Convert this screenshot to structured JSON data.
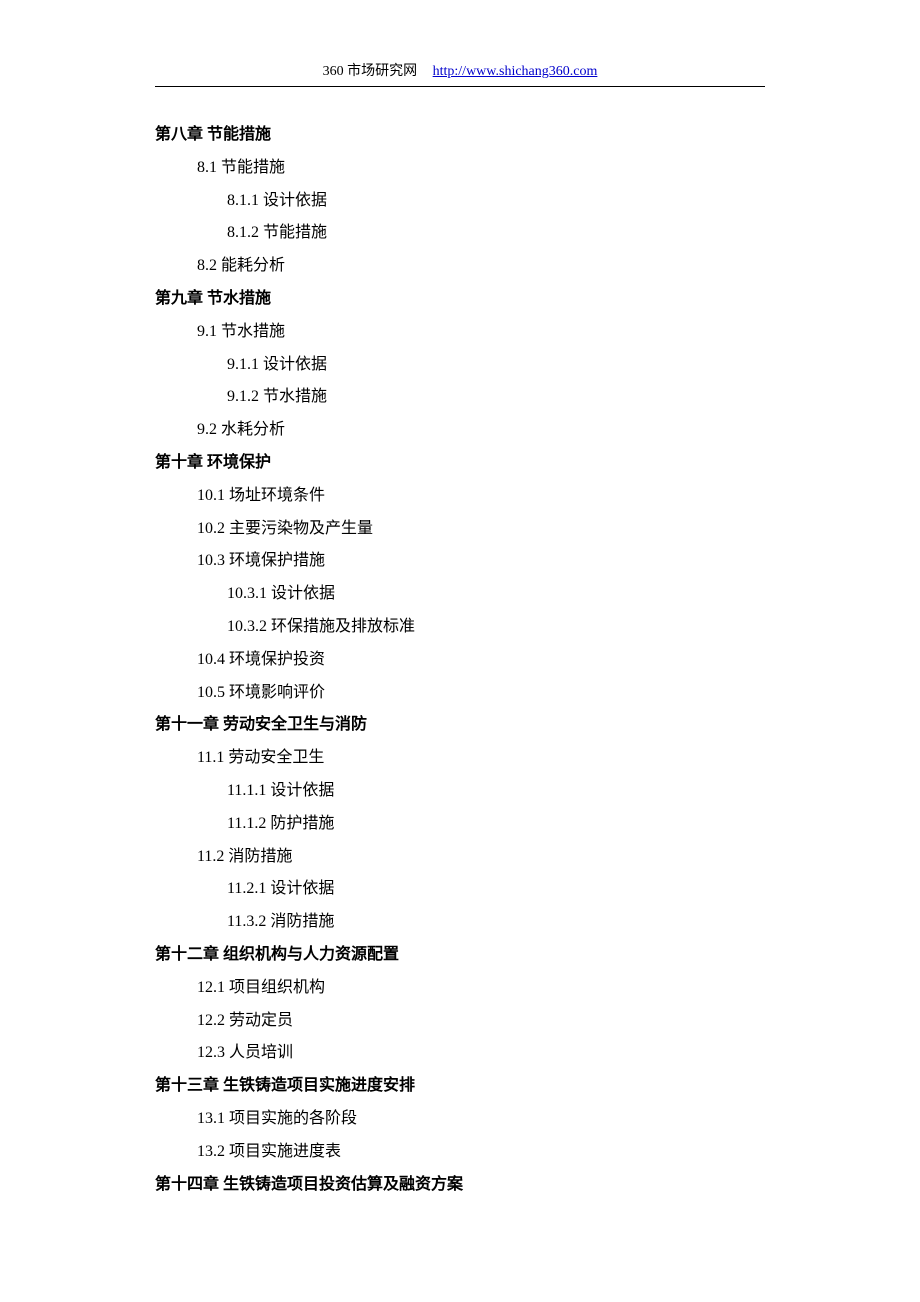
{
  "header": {
    "site_name": "360 市场研究网",
    "url": "http://www.shichang360.com"
  },
  "toc": [
    {
      "type": "chapter",
      "text": "第八章 节能措施"
    },
    {
      "type": "level1",
      "text": "8.1 节能措施"
    },
    {
      "type": "level2",
      "text": "8.1.1 设计依据"
    },
    {
      "type": "level2",
      "text": "8.1.2 节能措施"
    },
    {
      "type": "level1",
      "text": "8.2 能耗分析"
    },
    {
      "type": "chapter",
      "text": "第九章 节水措施"
    },
    {
      "type": "level1",
      "text": "9.1 节水措施"
    },
    {
      "type": "level2",
      "text": "9.1.1 设计依据"
    },
    {
      "type": "level2",
      "text": "9.1.2 节水措施"
    },
    {
      "type": "level1",
      "text": "9.2 水耗分析"
    },
    {
      "type": "chapter",
      "text": "第十章 环境保护"
    },
    {
      "type": "level1",
      "text": "10.1 场址环境条件"
    },
    {
      "type": "level1",
      "text": "10.2 主要污染物及产生量"
    },
    {
      "type": "level1",
      "text": "10.3 环境保护措施"
    },
    {
      "type": "level2",
      "text": "10.3.1 设计依据"
    },
    {
      "type": "level2",
      "text": "10.3.2 环保措施及排放标准"
    },
    {
      "type": "level1",
      "text": "10.4 环境保护投资"
    },
    {
      "type": "level1",
      "text": "10.5 环境影响评价"
    },
    {
      "type": "chapter",
      "text": "第十一章 劳动安全卫生与消防"
    },
    {
      "type": "level1",
      "text": "11.1 劳动安全卫生"
    },
    {
      "type": "level2",
      "text": "11.1.1 设计依据"
    },
    {
      "type": "level2",
      "text": "11.1.2 防护措施"
    },
    {
      "type": "level1",
      "text": "11.2 消防措施"
    },
    {
      "type": "level2",
      "text": "11.2.1 设计依据"
    },
    {
      "type": "level2",
      "text": "11.3.2 消防措施"
    },
    {
      "type": "chapter",
      "text": "第十二章 组织机构与人力资源配置"
    },
    {
      "type": "level1",
      "text": "12.1 项目组织机构"
    },
    {
      "type": "level1",
      "text": "12.2 劳动定员"
    },
    {
      "type": "level1",
      "text": "12.3 人员培训"
    },
    {
      "type": "chapter",
      "text": "第十三章 生铁铸造项目实施进度安排"
    },
    {
      "type": "level1",
      "text": "13.1 项目实施的各阶段"
    },
    {
      "type": "level1",
      "text": "13.2 项目实施进度表"
    },
    {
      "type": "chapter",
      "text": "第十四章 生铁铸造项目投资估算及融资方案"
    }
  ]
}
